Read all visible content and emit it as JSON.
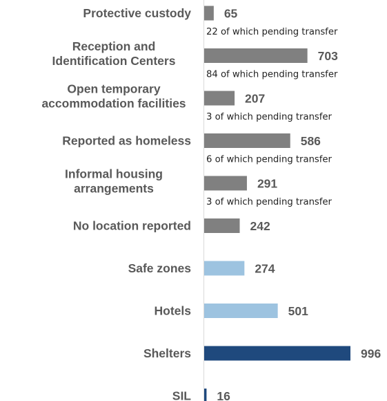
{
  "chart_data": {
    "type": "bar",
    "orientation": "horizontal",
    "title": "",
    "xlabel": "",
    "ylabel": "",
    "xlim": [
      0,
      996
    ],
    "grid": false,
    "categories": [
      [
        "Protective custody"
      ],
      [
        "Reception and",
        "Identification Centers"
      ],
      [
        "Open temporary",
        "accommodation facilities"
      ],
      [
        "Reported as homeless"
      ],
      [
        "Informal housing",
        "arrangements"
      ],
      [
        "No location reported"
      ],
      [
        "Safe zones"
      ],
      [
        "Hotels"
      ],
      [
        "Shelters"
      ],
      [
        "SIL"
      ]
    ],
    "values": [
      65,
      703,
      207,
      586,
      291,
      242,
      274,
      501,
      996,
      16
    ],
    "notes": [
      "22 of which pending transfer",
      "84 of which pending transfer",
      "3 of which pending transfer",
      "6 of which pending transfer",
      "3 of which pending transfer",
      "",
      "",
      "",
      "",
      ""
    ],
    "colors": [
      "#808080",
      "#808080",
      "#808080",
      "#808080",
      "#808080",
      "#808080",
      "#9dc3e0",
      "#9dc3e0",
      "#1f497d",
      "#1f497d"
    ]
  }
}
